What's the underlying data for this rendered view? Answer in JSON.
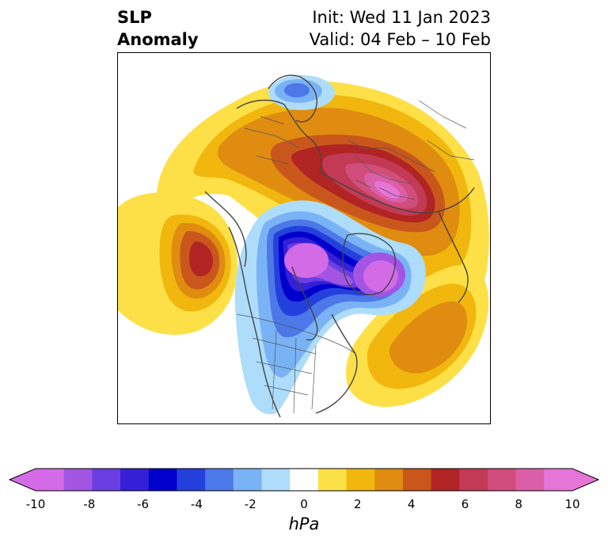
{
  "title": {
    "variable_line1": "SLP",
    "variable_line2": "Anomaly",
    "init": "Init: Wed 11 Jan 2023",
    "valid": "Valid: 04 Feb – 10 Feb"
  },
  "map": {
    "projection": "north-polar-stereographic",
    "features": [
      "coastlines",
      "country-borders",
      "state-province-borders"
    ],
    "anomaly_regions": [
      {
        "name": "siberia-high",
        "sign": "positive",
        "peak_hpa": 10
      },
      {
        "name": "aleutian-ridge",
        "sign": "positive",
        "peak_hpa": 6
      },
      {
        "name": "north-atlantic-ridge",
        "sign": "positive",
        "peak_hpa": 4
      },
      {
        "name": "arctic-canada-low",
        "sign": "negative",
        "peak_hpa": -10
      },
      {
        "name": "greenland-low",
        "sign": "negative",
        "peak_hpa": -10
      },
      {
        "name": "scandinavia-low",
        "sign": "negative",
        "peak_hpa": -4
      }
    ]
  },
  "colorbar": {
    "label": "hPa",
    "extend": "both",
    "levels": [
      -10,
      -9,
      -8,
      -7,
      -6,
      -5,
      -4,
      -3,
      -2,
      -1,
      1,
      2,
      3,
      4,
      5,
      6,
      7,
      8,
      9,
      10
    ],
    "colors": [
      "#d36be6",
      "#a254e3",
      "#6a3ee0",
      "#3520d8",
      "#0000cd",
      "#2440dc",
      "#4d78e8",
      "#7ab3f5",
      "#aedcfb",
      "#ffffff",
      "#fde047",
      "#f1b70e",
      "#df8c10",
      "#c9571c",
      "#b12424",
      "#c23a55",
      "#d04d7c",
      "#db5fa8",
      "#e675d8"
    ],
    "under_color": "#d36be6",
    "over_color": "#e675d8",
    "ticks": [
      "-10",
      "-8",
      "-6",
      "-4",
      "-2",
      "0",
      "2",
      "4",
      "6",
      "8",
      "10"
    ]
  }
}
